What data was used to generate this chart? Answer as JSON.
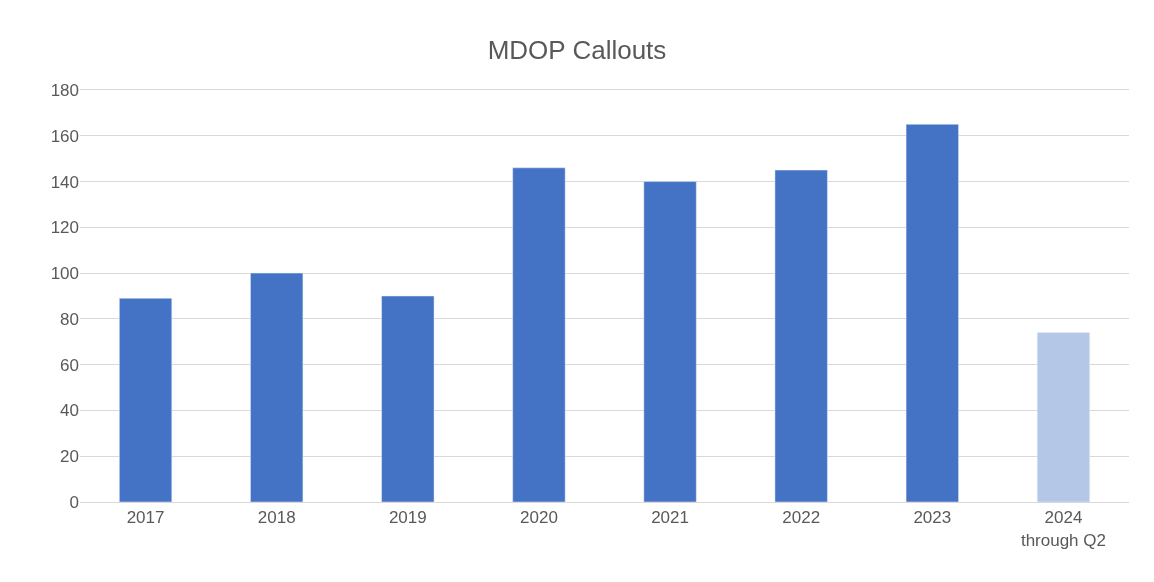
{
  "chart_data": {
    "type": "bar",
    "title": "MDOP Callouts",
    "categories": [
      "2017",
      "2018",
      "2019",
      "2020",
      "2021",
      "2022",
      "2023",
      "2024\nthrough Q2"
    ],
    "values": [
      89,
      100,
      90,
      146,
      140,
      145,
      165,
      74
    ],
    "colors": [
      "#4472c4",
      "#4472c4",
      "#4472c4",
      "#4472c4",
      "#4472c4",
      "#4472c4",
      "#4472c4",
      "#b4c7e7"
    ],
    "ylim": [
      0,
      180
    ],
    "yticks": [
      0,
      20,
      40,
      60,
      80,
      100,
      120,
      140,
      160,
      180
    ],
    "grid": "y"
  }
}
